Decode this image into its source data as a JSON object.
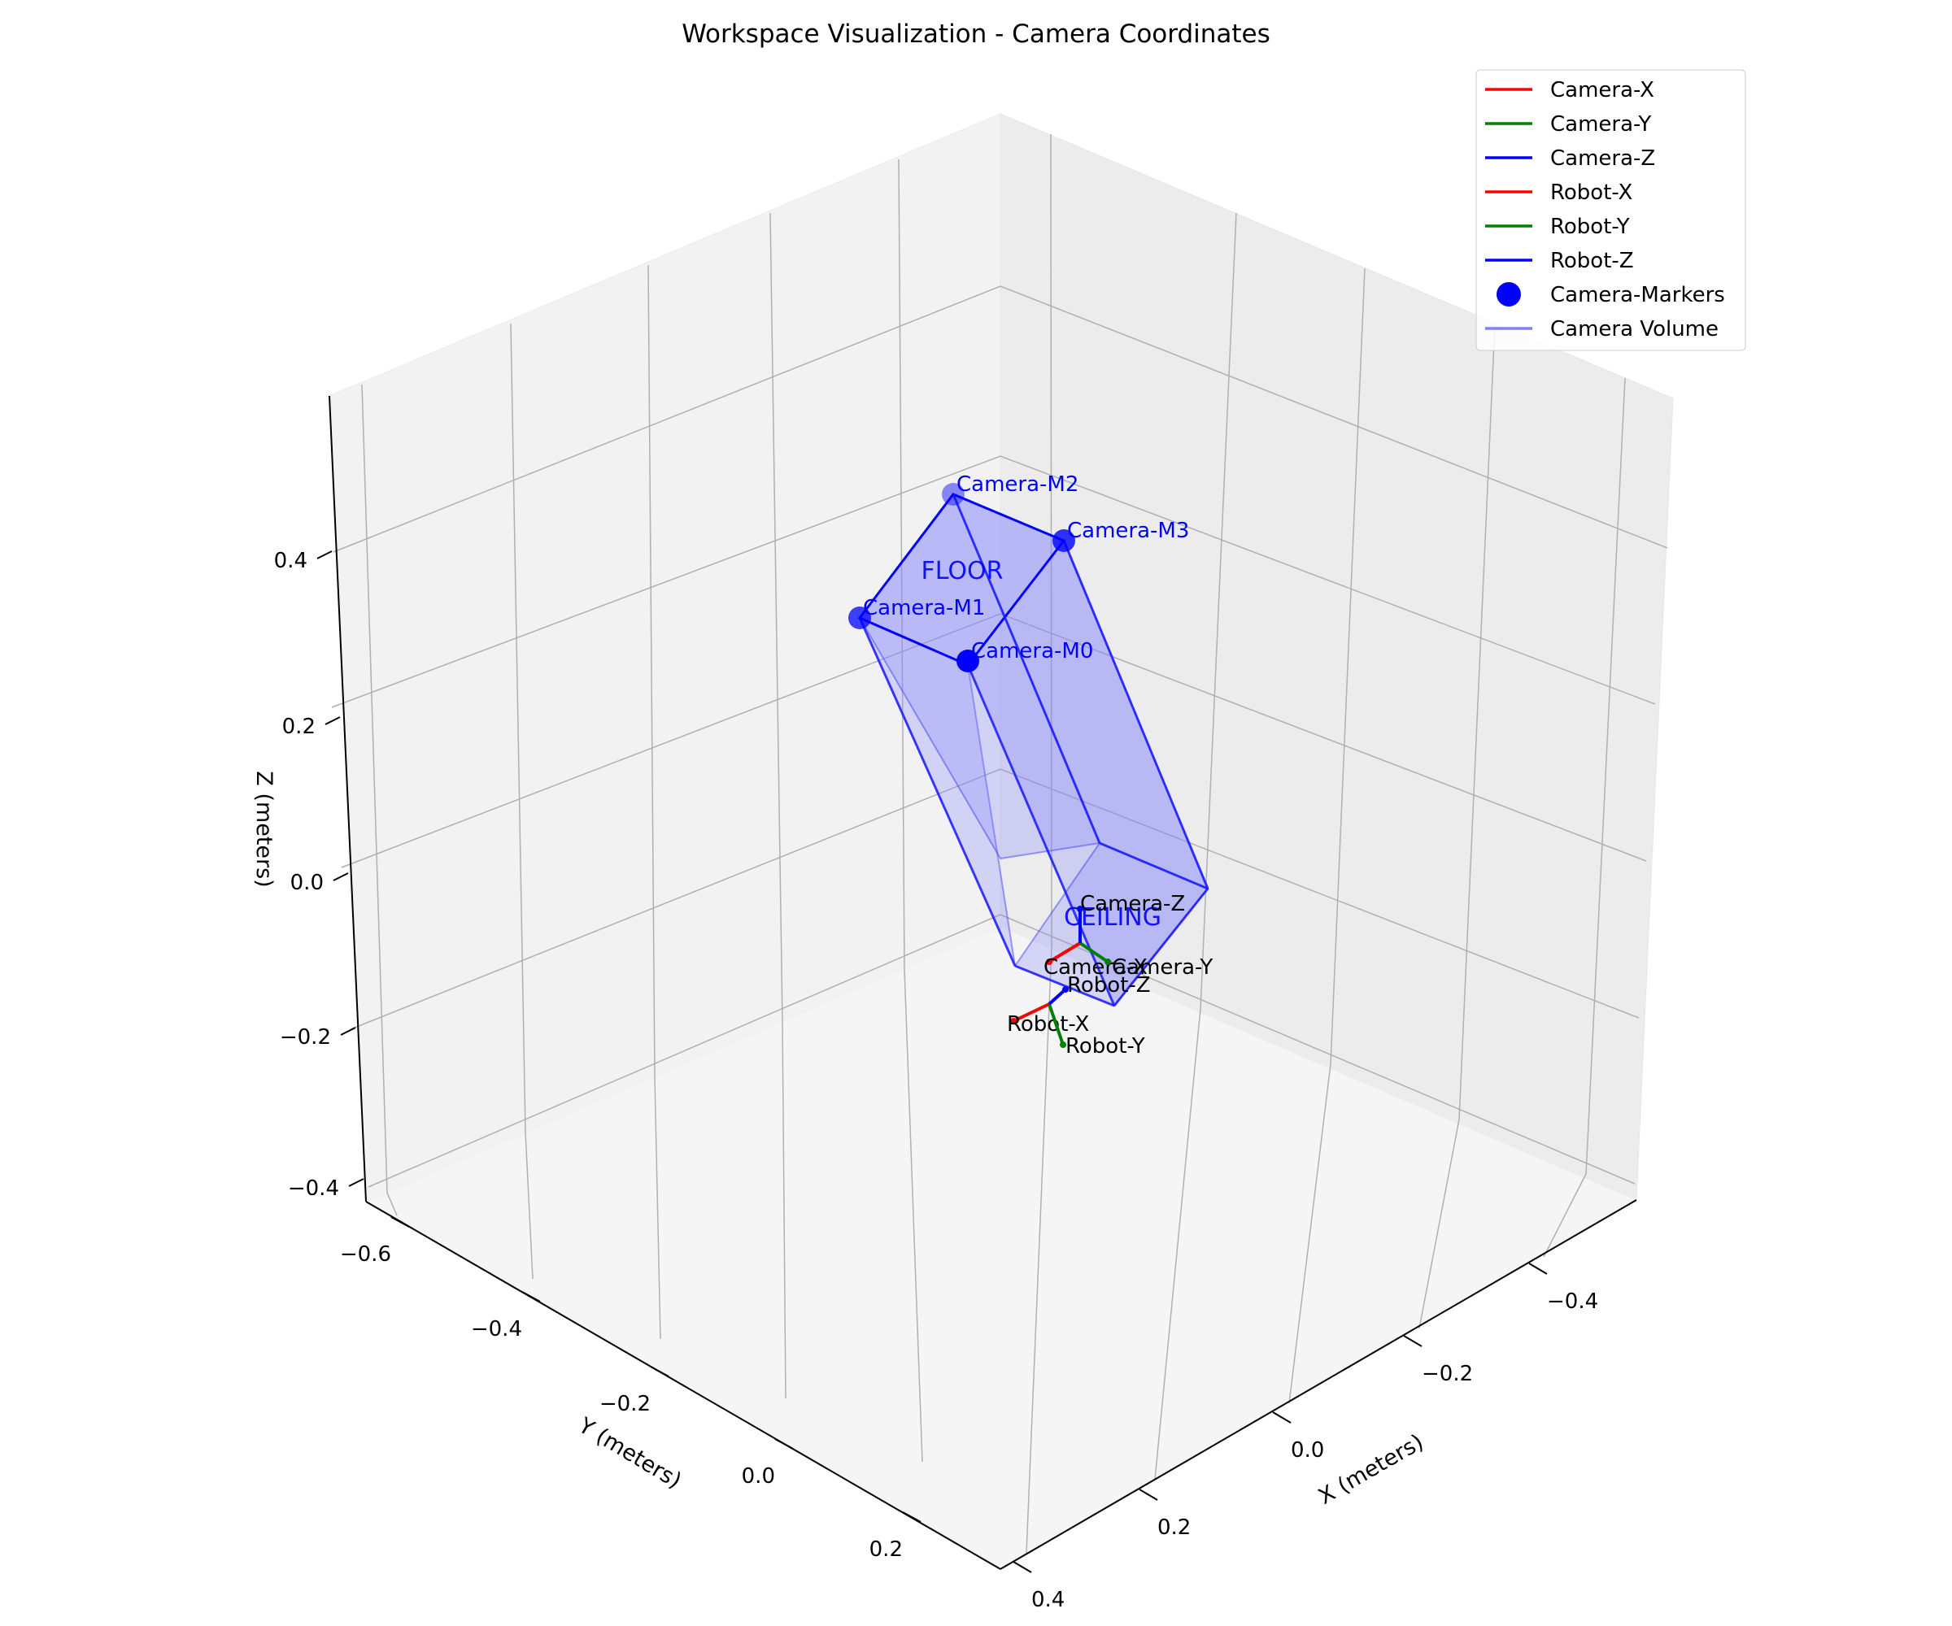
{
  "chart_data": {
    "type": "3d-line",
    "title": "Workspace Visualization - Camera Coordinates",
    "xlabel": "X (meters)",
    "ylabel": "Y (meters)",
    "zlabel": "Z (meters)",
    "grid": true,
    "legend_position": "top-right",
    "x_ticks": [
      "−0.4",
      "−0.2",
      "0.0",
      "0.2",
      "0.4"
    ],
    "y_ticks": [
      "−0.6",
      "−0.4",
      "−0.2",
      "0.0",
      "0.2"
    ],
    "z_ticks": [
      "−0.4",
      "−0.2",
      "0.0",
      "0.2",
      "0.4"
    ],
    "legend": [
      {
        "label": "Camera-X",
        "kind": "line",
        "color": "#ff0000"
      },
      {
        "label": "Camera-Y",
        "kind": "line",
        "color": "#008000"
      },
      {
        "label": "Camera-Z",
        "kind": "line",
        "color": "#0000ff"
      },
      {
        "label": "Robot-X",
        "kind": "line",
        "color": "#ff0000"
      },
      {
        "label": "Robot-Y",
        "kind": "line",
        "color": "#008000"
      },
      {
        "label": "Robot-Z",
        "kind": "line",
        "color": "#0000ff"
      },
      {
        "label": "Camera-Markers",
        "kind": "marker",
        "color": "#0000ff"
      },
      {
        "label": "Camera Volume",
        "kind": "line",
        "color": "#7f7fff"
      }
    ],
    "markers": [
      {
        "label": "Camera-M0",
        "color": "#0000ff"
      },
      {
        "label": "Camera-M1",
        "color": "#0000ff"
      },
      {
        "label": "Camera-M2",
        "color": "#0000ff"
      },
      {
        "label": "Camera-M3",
        "color": "#0000ff"
      }
    ],
    "volume_faces": [
      {
        "label": "FLOOR",
        "color": "#0000ff"
      },
      {
        "label": "CEILING",
        "color": "#0000ff"
      }
    ],
    "axis_annotations": [
      {
        "label": "Camera-X",
        "color": "#ff0000"
      },
      {
        "label": "Camera-Y",
        "color": "#008000"
      },
      {
        "label": "Camera-Z",
        "color": "#0000ff"
      },
      {
        "label": "Robot-X",
        "color": "#ff0000"
      },
      {
        "label": "Robot-Y",
        "color": "#008000"
      },
      {
        "label": "Robot-Z",
        "color": "#0000ff"
      }
    ]
  }
}
